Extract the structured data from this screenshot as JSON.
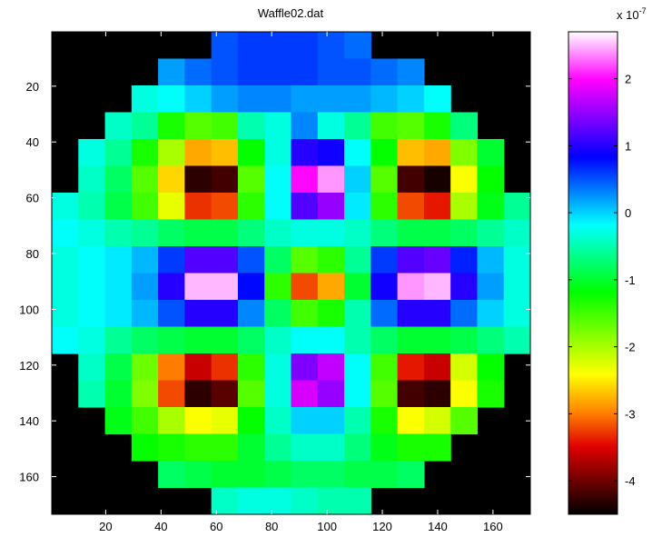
{
  "chart_data": {
    "type": "heatmap",
    "title": "Waffle02.dat",
    "x": [
      5.31,
      14.92,
      24.53,
      34.14,
      43.75,
      53.36,
      62.97,
      72.58,
      82.19,
      91.81,
      101.42,
      111.03,
      120.64,
      130.25,
      139.86,
      149.47,
      159.08,
      168.69
    ],
    "y": [
      5.31,
      14.92,
      24.53,
      34.14,
      43.75,
      53.36,
      62.97,
      72.58,
      82.19,
      91.81,
      101.42,
      111.03,
      120.64,
      130.25,
      139.86,
      149.47,
      159.08,
      168.69
    ],
    "z": [
      [
        null,
        null,
        null,
        null,
        null,
        null,
        0.5,
        0.6,
        0.6,
        0.6,
        0.5,
        0.4,
        null,
        null,
        null,
        null,
        null,
        null
      ],
      [
        null,
        null,
        null,
        null,
        0.2,
        0.4,
        0.5,
        0.6,
        0.6,
        0.6,
        0.5,
        0.5,
        0.4,
        0.3,
        null,
        null,
        null,
        null
      ],
      [
        null,
        null,
        null,
        -0.3,
        -0.2,
        0.0,
        0.2,
        0.3,
        0.3,
        0.2,
        0.2,
        0.2,
        0.1,
        0.0,
        -0.2,
        null,
        null,
        null
      ],
      [
        null,
        null,
        -0.4,
        -0.6,
        -1.3,
        -1.6,
        -1.5,
        -0.5,
        -0.3,
        0.3,
        -0.3,
        -0.6,
        -1.5,
        -1.6,
        -1.3,
        -0.7,
        null,
        null
      ],
      [
        null,
        -0.3,
        -0.6,
        -1.3,
        -2.0,
        -2.8,
        -2.7,
        -1.2,
        -0.3,
        1.0,
        0.9,
        -0.2,
        -1.2,
        -2.7,
        -2.8,
        -1.8,
        -1.0,
        null
      ],
      [
        null,
        -0.4,
        -0.8,
        -1.6,
        -2.6,
        -4.3,
        -4.2,
        -1.6,
        -0.2,
        2.0,
        2.4,
        0.0,
        -1.6,
        -4.2,
        -4.4,
        -2.4,
        -1.2,
        null
      ],
      [
        -0.3,
        -0.5,
        -0.9,
        -1.5,
        -2.3,
        -3.3,
        -3.2,
        -1.4,
        -0.2,
        1.2,
        1.5,
        -0.1,
        -1.4,
        -3.2,
        -3.4,
        -2.0,
        -1.1,
        -0.6
      ],
      [
        -0.2,
        -0.3,
        -0.5,
        -0.6,
        -0.8,
        -0.9,
        -0.9,
        -0.7,
        -0.4,
        -0.3,
        -0.3,
        -0.4,
        -0.7,
        -0.9,
        -0.9,
        -0.8,
        -0.6,
        -0.4
      ],
      [
        -0.3,
        -0.2,
        -0.1,
        0.1,
        0.6,
        1.2,
        1.2,
        0.5,
        -0.8,
        -1.6,
        -1.4,
        -0.6,
        0.6,
        1.2,
        1.3,
        0.7,
        0.1,
        -0.3
      ],
      [
        -0.3,
        -0.2,
        -0.1,
        0.2,
        1.0,
        2.5,
        2.5,
        0.8,
        -1.4,
        -3.2,
        -2.8,
        -1.0,
        0.9,
        2.4,
        2.5,
        1.0,
        0.2,
        -0.3
      ],
      [
        -0.3,
        -0.2,
        -0.1,
        0.1,
        0.5,
        1.0,
        1.0,
        0.3,
        -0.8,
        -1.5,
        -1.3,
        -0.5,
        0.4,
        1.0,
        1.0,
        0.4,
        0.0,
        -0.3
      ],
      [
        -0.2,
        -0.3,
        -0.6,
        -0.8,
        -0.9,
        -1.0,
        -1.0,
        -0.8,
        -0.4,
        -0.2,
        -0.2,
        -0.5,
        -0.8,
        -1.0,
        -1.0,
        -0.9,
        -0.7,
        -0.5
      ],
      [
        null,
        -0.4,
        -0.9,
        -1.7,
        -3.0,
        -3.6,
        -3.3,
        -1.4,
        -0.3,
        1.4,
        1.7,
        -0.2,
        -1.5,
        -3.4,
        -3.6,
        -2.2,
        -1.2,
        null
      ],
      [
        null,
        -0.5,
        -1.0,
        -1.8,
        -3.2,
        -4.3,
        -4.1,
        -1.6,
        -0.3,
        1.8,
        1.5,
        -0.2,
        -1.6,
        -4.2,
        -4.3,
        -2.4,
        -1.3,
        null
      ],
      [
        null,
        null,
        -1.1,
        -1.5,
        -2.0,
        -2.4,
        -2.3,
        -1.2,
        -0.4,
        0.0,
        0.0,
        -0.5,
        -1.3,
        -2.4,
        -2.2,
        -1.6,
        null,
        null
      ],
      [
        null,
        null,
        null,
        -1.2,
        -1.3,
        -1.4,
        -1.4,
        -1.0,
        -0.6,
        -0.4,
        -0.4,
        -0.7,
        -1.1,
        -1.3,
        -1.3,
        null,
        null,
        null
      ],
      [
        null,
        null,
        null,
        null,
        -0.8,
        -0.9,
        -1.0,
        -1.0,
        -0.9,
        -0.8,
        -0.8,
        -0.9,
        -0.9,
        -0.8,
        null,
        null,
        null,
        null
      ],
      [
        null,
        null,
        null,
        null,
        null,
        null,
        -0.4,
        -0.3,
        -0.3,
        -0.4,
        -0.5,
        -0.5,
        null,
        null,
        null,
        null,
        null,
        null
      ]
    ],
    "xlim": [
      0.5,
      173.5
    ],
    "ylim": [
      0.5,
      173.5
    ],
    "y_reversed": true,
    "xticks": [
      20,
      40,
      60,
      80,
      100,
      120,
      140,
      160
    ],
    "yticks": [
      20,
      40,
      60,
      80,
      100,
      120,
      140,
      160
    ],
    "background": "#000000",
    "colorbar": {
      "clim": [
        -4.5,
        2.7
      ],
      "ticks": [
        -4,
        -3,
        -2,
        -1,
        0,
        1,
        2
      ],
      "multiplier_base": "x 10",
      "multiplier_exponent": "-7"
    },
    "colormap": {
      "positions": [
        0,
        0.14,
        0.21,
        0.29,
        0.46,
        0.6,
        0.74,
        0.9,
        1
      ],
      "colors": [
        "#000000",
        "#e00000",
        "#ff8000",
        "#ffff00",
        "#00ff00",
        "#00ffff",
        "#0000ff",
        "#ff00ff",
        "#ffffff"
      ]
    }
  }
}
